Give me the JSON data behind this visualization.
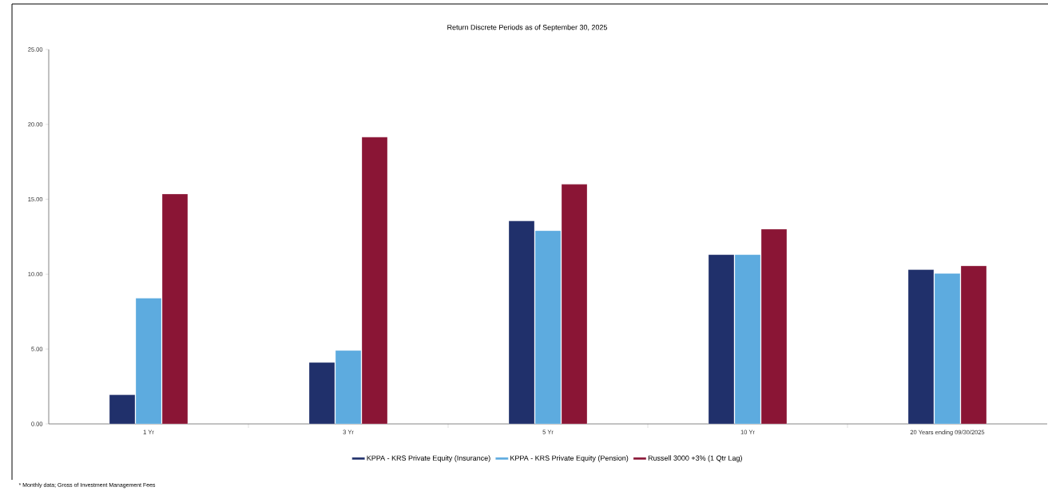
{
  "chart_data": {
    "type": "bar",
    "title": "Return Discrete Periods as of September 30, 2025",
    "categories": [
      "1 Yr",
      "3 Yr",
      "5 Yr",
      "10 Yr",
      "20 Years ending 09/30/2025"
    ],
    "series": [
      {
        "name": "KPPA - KRS Private Equity (Insurance)",
        "color": "#20306b",
        "values": [
          1.95,
          4.1,
          13.55,
          11.3,
          10.3
        ]
      },
      {
        "name": "KPPA - KRS Private Equity (Pension)",
        "color": "#5dabdf",
        "values": [
          8.4,
          4.9,
          12.9,
          11.3,
          10.05
        ]
      },
      {
        "name": "Russell 3000 +3% (1 Qtr Lag)",
        "color": "#8a1535",
        "values": [
          15.35,
          19.15,
          16.0,
          13.0,
          10.55
        ]
      }
    ],
    "ylim": [
      0,
      25
    ],
    "yticks": [
      {
        "value": 0,
        "label": "0.00"
      },
      {
        "value": 5,
        "label": "5.00"
      },
      {
        "value": 10,
        "label": "10.00"
      },
      {
        "value": 15,
        "label": "15.00"
      },
      {
        "value": 20,
        "label": "20.00"
      },
      {
        "value": 25,
        "label": "25.00"
      }
    ],
    "legend": "bottom",
    "annotations": [
      "* Monthly data; Gross of Investment Management Fees"
    ]
  }
}
